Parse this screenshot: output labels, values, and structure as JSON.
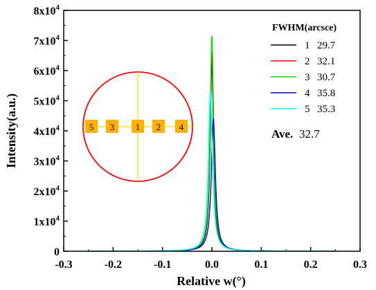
{
  "chart_data": {
    "type": "line",
    "xlabel": "Relative w(°)",
    "ylabel": "Intensity(a.u.)",
    "xlim": [
      -0.3,
      0.3
    ],
    "ylim": [
      0,
      80000
    ],
    "x_ticks": [
      "-0.3",
      "-0.2",
      "-0.1",
      "0.0",
      "0.1",
      "0.2",
      "0.3"
    ],
    "y_ticks": [
      {
        "mant": "0",
        "exp": ""
      },
      {
        "mant": "1x10",
        "exp": "4"
      },
      {
        "mant": "2x10",
        "exp": "4"
      },
      {
        "mant": "3x10",
        "exp": "4"
      },
      {
        "mant": "4x10",
        "exp": "4"
      },
      {
        "mant": "5x10",
        "exp": "4"
      },
      {
        "mant": "6x10",
        "exp": "4"
      },
      {
        "mant": "7x10",
        "exp": "4"
      },
      {
        "mant": "8x10",
        "exp": "4"
      }
    ],
    "legend": {
      "title": "FWHM(arcsce)",
      "position": "top-right"
    },
    "series": [
      {
        "name": "1",
        "fwhm": "29.7",
        "color": "#000000",
        "center": 0.0,
        "peak": 63000,
        "fwhm_deg": 0.00825
      },
      {
        "name": "2",
        "fwhm": "32.1",
        "color": "#ff0000",
        "center": 0.0,
        "peak": 66000,
        "fwhm_deg": 0.00892
      },
      {
        "name": "3",
        "fwhm": "30.7",
        "color": "#00dd00",
        "center": 0.0,
        "peak": 71500,
        "fwhm_deg": 0.00853
      },
      {
        "name": "4",
        "fwhm": "35.8",
        "color": "#0000cc",
        "center": 0.003,
        "peak": 44000,
        "fwhm_deg": 0.00994
      },
      {
        "name": "5",
        "fwhm": "35.3",
        "color": "#00ffff",
        "center": -0.003,
        "peak": 53000,
        "fwhm_deg": 0.00981
      }
    ],
    "average": {
      "label": "Ave.",
      "value": "32.7"
    },
    "inset": {
      "description_labels": [
        "5",
        "3",
        "1",
        "2",
        "4"
      ],
      "circle_color": "#ff0000",
      "line_color": "#ffd700",
      "marker_color": "#ffb000"
    }
  }
}
